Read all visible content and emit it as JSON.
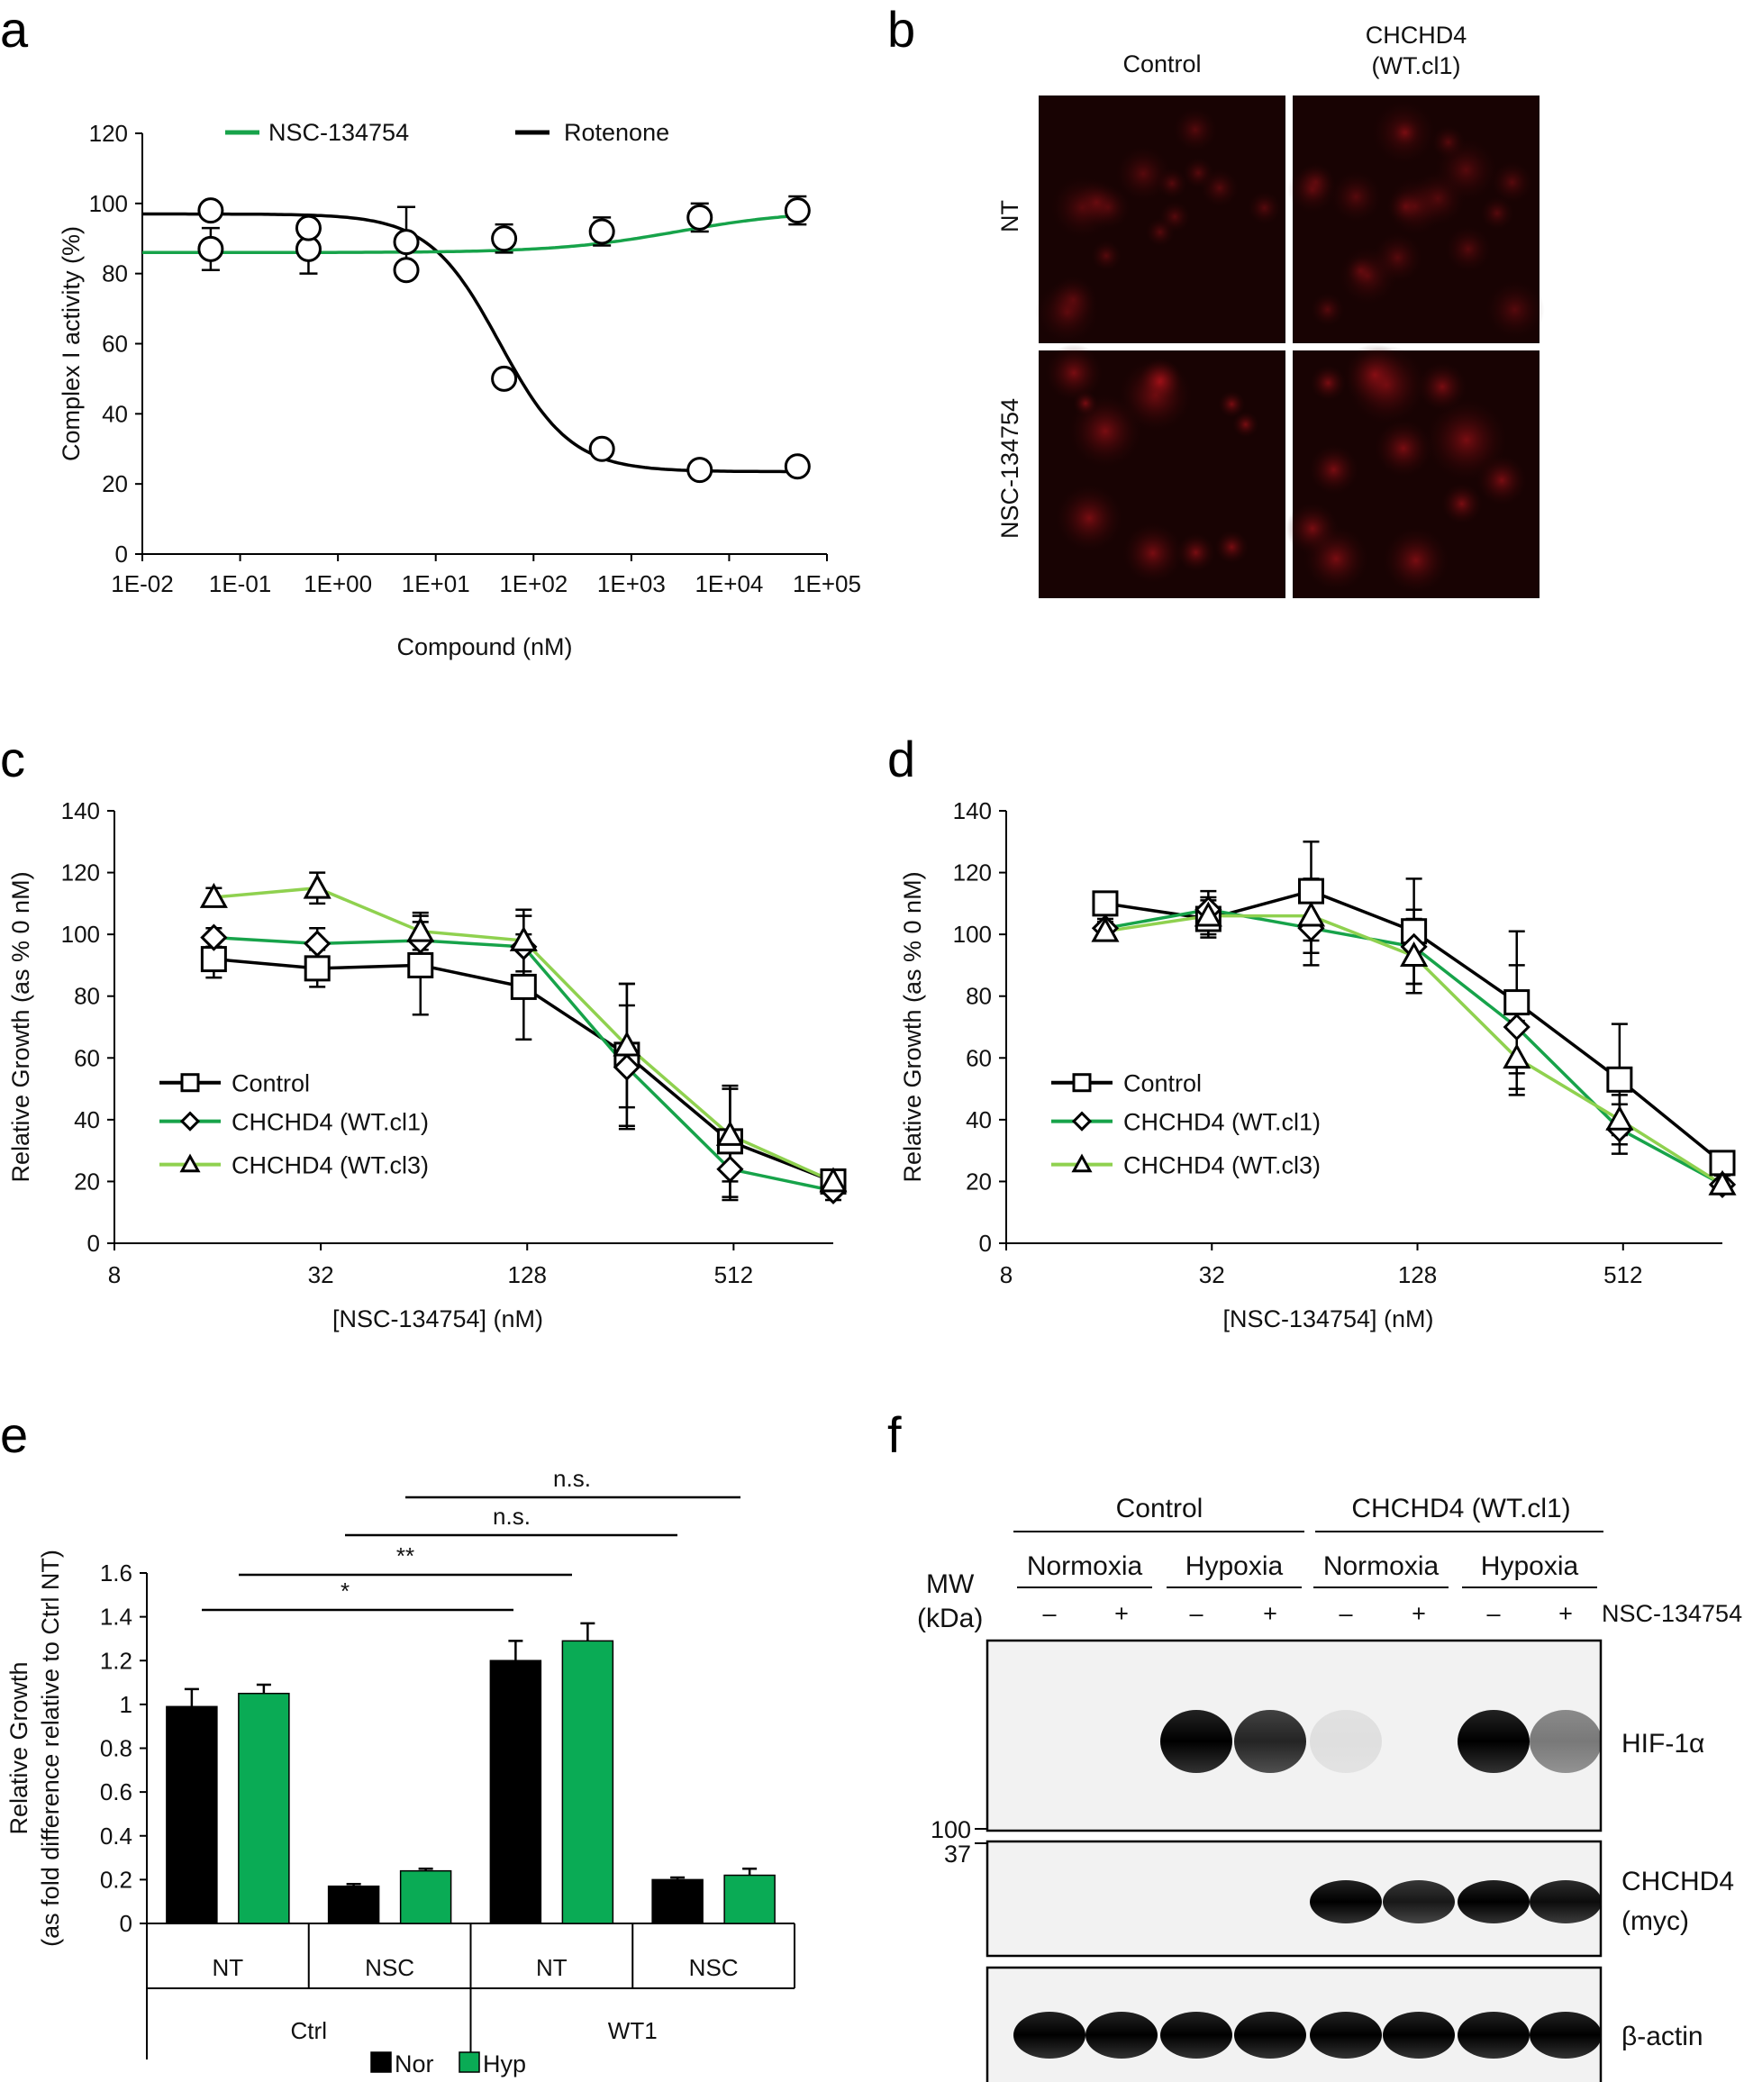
{
  "panel_labels": {
    "a": "a",
    "b": "b",
    "c": "c",
    "d": "d",
    "e": "e",
    "f": "f"
  },
  "colors": {
    "green": "#17a34a",
    "light_green": "#8fd14f",
    "black": "#000000",
    "hyp_green": "#0aab55"
  },
  "chart_data": [
    {
      "id": "a",
      "type": "line",
      "xlabel": "Compound  (nM)",
      "ylabel": "Complex I activity (%)",
      "xscale": "log",
      "xlim": [
        0.01,
        100000
      ],
      "ylim": [
        0,
        120
      ],
      "x_tick_labels": [
        "1E-02",
        "1E-01",
        "1E+00",
        "1E+01",
        "1E+02",
        "1E+03",
        "1E+04",
        "1E+05"
      ],
      "y_tick_labels": [
        "0",
        "20",
        "40",
        "60",
        "80",
        "100",
        "120"
      ],
      "legend_position": "top",
      "series": [
        {
          "name": "NSC-134754",
          "color": "#17a34a",
          "x": [
            0.05,
            0.5,
            5,
            50,
            500,
            5000,
            50000
          ],
          "y": [
            87,
            87,
            89,
            90,
            92,
            96,
            98
          ],
          "err": [
            6,
            7,
            10,
            4,
            4,
            4,
            4
          ]
        },
        {
          "name": "Rotenone",
          "color": "#000000",
          "x": [
            0.05,
            0.5,
            5,
            50,
            500,
            5000,
            50000
          ],
          "y": [
            98,
            93,
            81,
            50,
            30,
            24,
            25
          ],
          "err": [
            0,
            0,
            0,
            0,
            0,
            0,
            0
          ]
        }
      ]
    },
    {
      "id": "c",
      "type": "line",
      "xlabel": "[NSC-134754]  (nM)",
      "ylabel": "Relative Growth (as % 0 nM)",
      "xscale": "log2",
      "xlim": [
        8,
        1000
      ],
      "ylim": [
        0,
        140
      ],
      "x_tick_labels": [
        "8",
        "32",
        "128",
        "512"
      ],
      "y_tick_labels": [
        "0",
        "20",
        "40",
        "60",
        "80",
        "100",
        "120",
        "140"
      ],
      "legend_position": "lower-left",
      "series": [
        {
          "name": "Control",
          "marker": "square",
          "color": "#000000",
          "x": [
            15.6,
            31.25,
            62.5,
            125,
            250,
            500,
            1000
          ],
          "y": [
            92,
            89,
            90,
            83,
            61,
            33,
            20
          ],
          "err": [
            6,
            6,
            16,
            17,
            23,
            18,
            3
          ]
        },
        {
          "name": "CHCHD4 (WT.cl1)",
          "marker": "diamond",
          "color": "#17a34a",
          "x": [
            15.6,
            31.25,
            62.5,
            125,
            250,
            500,
            1000
          ],
          "y": [
            99,
            97,
            98,
            96,
            57,
            24,
            17
          ],
          "err": [
            3,
            5,
            6,
            10,
            20,
            10,
            3
          ]
        },
        {
          "name": "CHCHD4 (WT.cl3)",
          "marker": "triangle",
          "color": "#8fd14f",
          "x": [
            15.6,
            31.25,
            62.5,
            125,
            250,
            500,
            1000
          ],
          "y": [
            112,
            115,
            101,
            98,
            64,
            35,
            20
          ],
          "err": [
            3,
            5,
            6,
            10,
            20,
            15,
            3
          ]
        }
      ]
    },
    {
      "id": "d",
      "type": "line",
      "xlabel": "[NSC-134754]  (nM)",
      "ylabel": "Relative Growth (as % 0 nM)",
      "xscale": "log2",
      "xlim": [
        8,
        1000
      ],
      "ylim": [
        0,
        140
      ],
      "x_tick_labels": [
        "8",
        "32",
        "128",
        "512"
      ],
      "y_tick_labels": [
        "0",
        "20",
        "40",
        "60",
        "80",
        "100",
        "120",
        "140"
      ],
      "legend_position": "lower-left",
      "series": [
        {
          "name": "Control",
          "marker": "square",
          "color": "#000000",
          "x": [
            15.6,
            31.25,
            62.5,
            125,
            250,
            500,
            1000
          ],
          "y": [
            110,
            105,
            114,
            101,
            78,
            53,
            26
          ],
          "err": [
            3,
            6,
            16,
            17,
            23,
            18,
            3
          ]
        },
        {
          "name": "CHCHD4 (WT.cl1)",
          "marker": "diamond",
          "color": "#17a34a",
          "x": [
            15.6,
            31.25,
            62.5,
            125,
            250,
            500,
            1000
          ],
          "y": [
            102,
            108,
            102,
            96,
            70,
            37,
            19
          ],
          "err": [
            3,
            6,
            12,
            12,
            20,
            8,
            3
          ]
        },
        {
          "name": "CHCHD4 (WT.cl3)",
          "marker": "triangle",
          "color": "#8fd14f",
          "x": [
            15.6,
            31.25,
            62.5,
            125,
            250,
            500,
            1000
          ],
          "y": [
            101,
            106,
            106,
            93,
            60,
            40,
            19
          ],
          "err": [
            3,
            6,
            12,
            12,
            12,
            8,
            3
          ]
        }
      ]
    },
    {
      "id": "e",
      "type": "bar",
      "ylabel_lines": [
        "Relative Growth",
        "(as fold difference relative to Ctrl NT)"
      ],
      "ylim": [
        0,
        1.6
      ],
      "y_tick_labels": [
        "0",
        "0.2",
        "0.4",
        "0.6",
        "0.8",
        "1",
        "1.2",
        "1.4",
        "1.6"
      ],
      "categories": [
        "NT",
        "NSC",
        "NT",
        "NSC"
      ],
      "groups": [
        "Ctrl",
        "WT1"
      ],
      "series": [
        {
          "name": "Nor",
          "color": "#000000",
          "values": [
            0.99,
            0.17,
            1.2,
            0.2
          ],
          "err": [
            0.08,
            0.01,
            0.09,
            0.01
          ]
        },
        {
          "name": "Hyp",
          "color": "#0aab55",
          "values": [
            1.05,
            0.24,
            1.29,
            0.22
          ],
          "err": [
            0.04,
            0.01,
            0.08,
            0.03
          ]
        }
      ],
      "significance": [
        "*",
        "**",
        "n.s.",
        "n.s."
      ],
      "legend_position": "bottom"
    }
  ],
  "panel_b": {
    "col_labels": [
      "Control",
      "CHCHD4",
      "(WT.cl1)"
    ],
    "row_labels": [
      "NT",
      "NSC-134754"
    ],
    "image_type": "fluorescence micrographs (red)"
  },
  "panel_f": {
    "groups": [
      "Control",
      "CHCHD4 (WT.cl1)"
    ],
    "conditions": [
      "Normoxia",
      "Hypoxia",
      "Normoxia",
      "Hypoxia"
    ],
    "treatment_label": "NSC-134754",
    "treatment_signs": [
      "–",
      "+",
      "–",
      "+",
      "–",
      "+",
      "–",
      "+"
    ],
    "mw_label": [
      "MW",
      "(kDa)"
    ],
    "markers": [
      "100",
      "37",
      "37"
    ],
    "bands": [
      {
        "label": "HIF-1α",
        "intensity": [
          0,
          0,
          1,
          0.85,
          0.08,
          0,
          1,
          0.5
        ]
      },
      {
        "label_lines": [
          "CHCHD4",
          "(myc)"
        ],
        "intensity": [
          0,
          0,
          0,
          0,
          1,
          0.9,
          1,
          0.95
        ]
      },
      {
        "label": "β-actin",
        "intensity": [
          1,
          1,
          1,
          1,
          1,
          1,
          1,
          1
        ]
      }
    ]
  }
}
